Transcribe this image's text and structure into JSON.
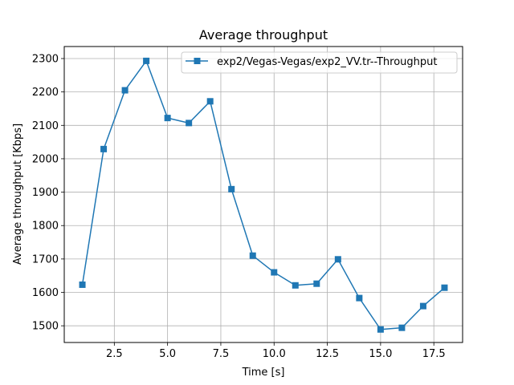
{
  "chart_data": {
    "type": "line",
    "title": "Average throughput",
    "xlabel": "Time [s]",
    "ylabel": "Average throughput [Kbps]",
    "xlim": [
      0.15,
      18.85
    ],
    "ylim": [
      1450,
      2336
    ],
    "xticks": [
      2.5,
      5.0,
      7.5,
      10.0,
      12.5,
      15.0,
      17.5
    ],
    "xtick_labels": [
      "2.5",
      "5.0",
      "7.5",
      "10.0",
      "12.5",
      "15.0",
      "17.5"
    ],
    "yticks": [
      1500,
      1600,
      1700,
      1800,
      1900,
      2000,
      2100,
      2200,
      2300
    ],
    "ytick_labels": [
      "1500",
      "1600",
      "1700",
      "1800",
      "1900",
      "2000",
      "2100",
      "2200",
      "2300"
    ],
    "grid": true,
    "legend_position": "top-right",
    "series": [
      {
        "name": "exp2/Vegas-Vegas/exp2_VV.tr--Throughput",
        "color": "#1f77b4",
        "marker": "square",
        "x": [
          1,
          2,
          3,
          4,
          5,
          6,
          7,
          8,
          9,
          10,
          11,
          12,
          13,
          14,
          15,
          16,
          17,
          18
        ],
        "y": [
          1623,
          2029,
          2205,
          2293,
          2122,
          2107,
          2172,
          1909,
          1710,
          1660,
          1621,
          1626,
          1699,
          1583,
          1489,
          1494,
          1559,
          1614
        ]
      }
    ]
  }
}
